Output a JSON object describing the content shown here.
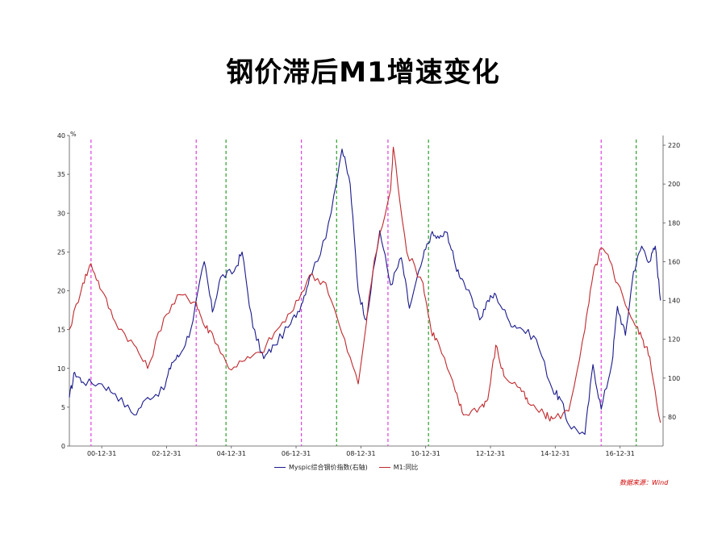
{
  "title": "钢价滞后M1增速变化",
  "chart_data": {
    "type": "line",
    "left_axis_unit": "%",
    "left_ylim": [
      0,
      40
    ],
    "left_ticks": [
      "0",
      "5",
      "10",
      "15",
      "20",
      "25",
      "30",
      "35",
      "40"
    ],
    "right_ylim": [
      65,
      225
    ],
    "right_ticks": [
      "80",
      "100",
      "120",
      "140",
      "160",
      "180",
      "200",
      "220"
    ],
    "x_ticks": [
      "00-12-31",
      "02-12-31",
      "04-12-31",
      "06-12-31",
      "08-12-31",
      "10-12-31",
      "12-12-31",
      "14-12-31",
      "16-12-31"
    ],
    "x_range": [
      "2000-01-01",
      "2018-04-30"
    ],
    "series": [
      {
        "name": "Myspic综合钢价指数(右轴)",
        "axis": "right",
        "color": "#1a1a8c",
        "points": [
          [
            "2000-01-01",
            90
          ],
          [
            "2000-03-01",
            103
          ],
          [
            "2000-06-01",
            98
          ],
          [
            "2001-01-01",
            97
          ],
          [
            "2001-06-01",
            92
          ],
          [
            "2002-01-01",
            81
          ],
          [
            "2002-06-01",
            90
          ],
          [
            "2002-12-01",
            94
          ],
          [
            "2003-03-01",
            108
          ],
          [
            "2003-06-01",
            112
          ],
          [
            "2003-10-01",
            125
          ],
          [
            "2004-03-01",
            160
          ],
          [
            "2004-06-01",
            134
          ],
          [
            "2004-09-01",
            152
          ],
          [
            "2005-02-01",
            155
          ],
          [
            "2005-05-01",
            165
          ],
          [
            "2005-09-01",
            126
          ],
          [
            "2006-01-01",
            110
          ],
          [
            "2006-05-01",
            117
          ],
          [
            "2006-11-01",
            128
          ],
          [
            "2007-03-01",
            138
          ],
          [
            "2007-06-01",
            152
          ],
          [
            "2007-12-01",
            172
          ],
          [
            "2008-06-01",
            218
          ],
          [
            "2008-09-01",
            200
          ],
          [
            "2008-12-01",
            145
          ],
          [
            "2009-03-01",
            130
          ],
          [
            "2009-08-01",
            176
          ],
          [
            "2009-12-01",
            148
          ],
          [
            "2010-04-01",
            162
          ],
          [
            "2010-07-01",
            136
          ],
          [
            "2010-12-01",
            162
          ],
          [
            "2011-03-01",
            174
          ],
          [
            "2011-06-01",
            172
          ],
          [
            "2011-09-01",
            175
          ],
          [
            "2011-12-01",
            158
          ],
          [
            "2012-03-01",
            150
          ],
          [
            "2012-09-01",
            130
          ],
          [
            "2012-12-01",
            140
          ],
          [
            "2013-03-01",
            143
          ],
          [
            "2013-08-01",
            129
          ],
          [
            "2013-12-01",
            126
          ],
          [
            "2014-06-01",
            120
          ],
          [
            "2014-12-01",
            94
          ],
          [
            "2015-03-01",
            89
          ],
          [
            "2015-06-01",
            76
          ],
          [
            "2015-12-01",
            71
          ],
          [
            "2016-03-01",
            107
          ],
          [
            "2016-06-01",
            84
          ],
          [
            "2016-10-01",
            108
          ],
          [
            "2016-12-01",
            137
          ],
          [
            "2017-03-01",
            122
          ],
          [
            "2017-06-01",
            155
          ],
          [
            "2017-09-01",
            168
          ],
          [
            "2017-12-01",
            160
          ],
          [
            "2018-02-01",
            168
          ],
          [
            "2018-04-01",
            140
          ]
        ]
      },
      {
        "name": "M1:同比",
        "axis": "left",
        "color": "#c0282d",
        "points": [
          [
            "2000-01-01",
            15
          ],
          [
            "2000-06-01",
            21
          ],
          [
            "2000-09-01",
            23.5
          ],
          [
            "2001-01-01",
            20
          ],
          [
            "2001-06-01",
            16
          ],
          [
            "2002-01-01",
            13
          ],
          [
            "2002-06-01",
            10
          ],
          [
            "2002-12-01",
            16.5
          ],
          [
            "2003-06-01",
            19.5
          ],
          [
            "2003-12-01",
            18.5
          ],
          [
            "2004-03-01",
            15.5
          ],
          [
            "2004-06-01",
            14.5
          ],
          [
            "2004-12-01",
            10
          ],
          [
            "2005-06-01",
            11
          ],
          [
            "2005-12-01",
            12
          ],
          [
            "2006-06-01",
            15
          ],
          [
            "2006-12-01",
            17.5
          ],
          [
            "2007-06-01",
            22
          ],
          [
            "2007-12-01",
            21
          ],
          [
            "2008-06-01",
            14.5
          ],
          [
            "2008-12-01",
            8
          ],
          [
            "2009-06-01",
            24
          ],
          [
            "2009-12-01",
            33
          ],
          [
            "2010-01-01",
            38.5
          ],
          [
            "2010-06-01",
            25
          ],
          [
            "2010-12-01",
            21
          ],
          [
            "2011-03-01",
            15
          ],
          [
            "2011-06-01",
            13
          ],
          [
            "2011-12-01",
            7
          ],
          [
            "2012-03-01",
            4
          ],
          [
            "2012-09-01",
            5
          ],
          [
            "2012-12-01",
            6
          ],
          [
            "2013-03-01",
            13
          ],
          [
            "2013-06-01",
            9
          ],
          [
            "2013-12-01",
            7.5
          ],
          [
            "2014-03-01",
            5.5
          ],
          [
            "2014-09-01",
            4
          ],
          [
            "2014-12-01",
            3.5
          ],
          [
            "2015-06-01",
            4.5
          ],
          [
            "2015-12-01",
            15
          ],
          [
            "2016-03-01",
            22
          ],
          [
            "2016-06-01",
            25.5
          ],
          [
            "2016-09-01",
            24
          ],
          [
            "2016-12-01",
            21
          ],
          [
            "2017-06-01",
            16
          ],
          [
            "2017-09-01",
            14
          ],
          [
            "2017-12-01",
            11.5
          ],
          [
            "2018-04-01",
            3
          ]
        ]
      }
    ],
    "vlines": [
      {
        "x": "2000-09-01",
        "color": "#e040e0"
      },
      {
        "x": "2003-12-01",
        "color": "#e040e0"
      },
      {
        "x": "2004-11-01",
        "color": "#2e9e2e"
      },
      {
        "x": "2007-03-01",
        "color": "#e040e0"
      },
      {
        "x": "2008-04-01",
        "color": "#2e9e2e"
      },
      {
        "x": "2009-11-01",
        "color": "#e040e0"
      },
      {
        "x": "2011-02-01",
        "color": "#2e9e2e"
      },
      {
        "x": "2016-06-01",
        "color": "#e040e0"
      },
      {
        "x": "2017-07-01",
        "color": "#2e9e2e"
      }
    ]
  },
  "legend": {
    "items": [
      {
        "label": "Myspic综合钢价指数(右轴)",
        "color": "#1a1a8c"
      },
      {
        "label": "M1:同比",
        "color": "#c0282d"
      }
    ]
  },
  "source": "数据来源：Wind"
}
